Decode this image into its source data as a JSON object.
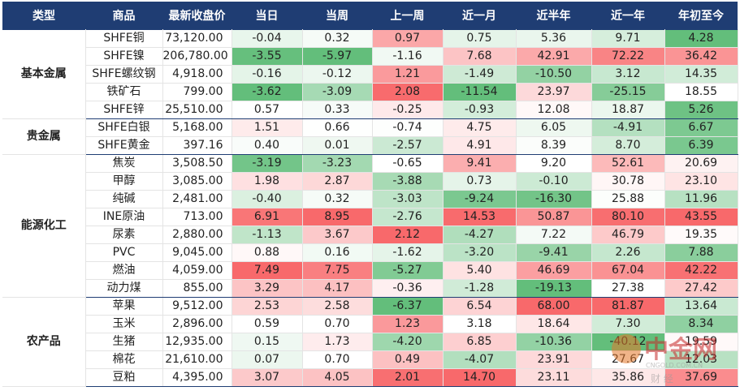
{
  "table": {
    "header": [
      "类型",
      "商品",
      "最新收盘价",
      "当日",
      "当周",
      "上一周",
      "近一月",
      "近半年",
      "近一年",
      "年初至今"
    ],
    "color_scale": {
      "low": "#63be7b",
      "mid": "#ffffff",
      "high": "#f8696b"
    },
    "groups": [
      {
        "name": "基本金属",
        "rows": [
          [
            "SHFE铜",
            "73,120.00",
            "-0.04",
            "0.32",
            "0.97",
            "0.75",
            "5.36",
            "9.71",
            "4.28"
          ],
          [
            "SHFE镍",
            "206,780.00",
            "-3.55",
            "-5.97",
            "-1.16",
            "7.68",
            "42.91",
            "72.22",
            "36.42"
          ],
          [
            "SHFE螺纹钢",
            "4,918.00",
            "-0.16",
            "-0.12",
            "1.21",
            "-1.49",
            "-10.50",
            "3.12",
            "14.35"
          ],
          [
            "铁矿石",
            "799.00",
            "-3.62",
            "-3.09",
            "2.08",
            "-11.54",
            "23.97",
            "-25.15",
            "18.55"
          ],
          [
            "SHFE锌",
            "25,510.00",
            "0.57",
            "0.33",
            "-0.25",
            "-0.93",
            "12.08",
            "18.87",
            "5.26"
          ]
        ]
      },
      {
        "name": "贵金属",
        "rows": [
          [
            "SHFE白银",
            "5,168.00",
            "1.51",
            "0.66",
            "-0.74",
            "4.75",
            "6.05",
            "-4.91",
            "6.67"
          ],
          [
            "SHFE黄金",
            "397.16",
            "0.40",
            "0.01",
            "-2.57",
            "4.91",
            "8.39",
            "8.70",
            "6.39"
          ]
        ]
      },
      {
        "name": "能源化工",
        "rows": [
          [
            "焦炭",
            "3,508.50",
            "-3.19",
            "-3.23",
            "-0.65",
            "9.41",
            "9.20",
            "52.61",
            "20.69"
          ],
          [
            "甲醇",
            "3,085.00",
            "1.98",
            "2.87",
            "-3.88",
            "0.73",
            "-0.10",
            "30.78",
            "23.10"
          ],
          [
            "纯碱",
            "2,481.00",
            "-0.40",
            "0.32",
            "-3.03",
            "-9.24",
            "-16.30",
            "25.88",
            "11.96"
          ],
          [
            "INE原油",
            "713.00",
            "6.91",
            "8.95",
            "-2.76",
            "14.53",
            "50.87",
            "80.10",
            "43.55"
          ],
          [
            "尿素",
            "2,880.00",
            "-1.13",
            "3.67",
            "2.12",
            "-4.27",
            "7.22",
            "46.79",
            "19.35"
          ],
          [
            "PVC",
            "9,045.00",
            "0.88",
            "0.16",
            "-1.62",
            "-3.20",
            "-9.41",
            "2.26",
            "7.88"
          ],
          [
            "燃油",
            "4,059.00",
            "7.49",
            "7.75",
            "-5.27",
            "5.40",
            "46.69",
            "67.04",
            "42.22"
          ],
          [
            "动力煤",
            "855.00",
            "3.29",
            "4.17",
            "-0.36",
            "-1.28",
            "-19.13",
            "27.38",
            "27.42"
          ]
        ]
      },
      {
        "name": "农产品",
        "rows": [
          [
            "苹果",
            "9,512.00",
            "2.53",
            "2.58",
            "-6.37",
            "6.54",
            "68.00",
            "81.87",
            "13.64"
          ],
          [
            "玉米",
            "2,896.00",
            "0.59",
            "0.70",
            "1.23",
            "3.18",
            "18.64",
            "7.30",
            "8.34"
          ],
          [
            "生猪",
            "12,935.00",
            "0.15",
            "1.73",
            "-4.20",
            "6.85",
            "-10.36",
            "-40.12",
            "19.59"
          ],
          [
            "棉花",
            "21,610.00",
            "0.07",
            "0.70",
            "0.49",
            "-4.07",
            "23.91",
            "27.67",
            "12.03"
          ],
          [
            "豆粕",
            "4,395.00",
            "3.07",
            "4.05",
            "2.01",
            "14.70",
            "23.11",
            "35.86",
            "37.69"
          ]
        ]
      }
    ],
    "watermark": {
      "logo": "中金网",
      "site": "CNGOLD.COM.CN",
      "tag": "财 经"
    }
  }
}
